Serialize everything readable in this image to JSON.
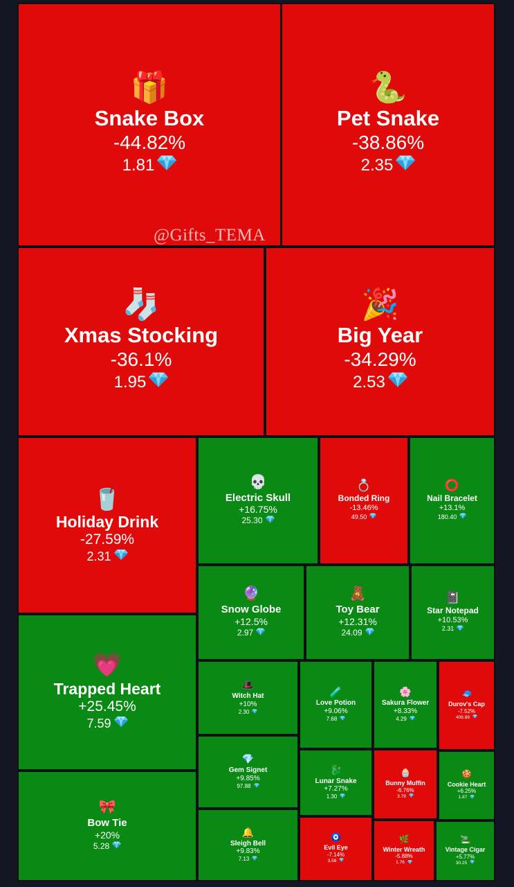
{
  "watermark": "@Gifts_TEMA",
  "colors": {
    "up": "#0a8a14",
    "down": "#e00a0a",
    "border": "#0c0f14",
    "background": "#141722",
    "text": "#ffffff",
    "gem": "#5ec8f5"
  },
  "chart_data": {
    "type": "treemap",
    "currency_icon": "diamond-icon",
    "items": [
      {
        "name": "Snake Box",
        "change": "-44.82%",
        "change_value": -44.82,
        "price": "1.81",
        "icon": "gift-box-icon"
      },
      {
        "name": "Pet Snake",
        "change": "-38.86%",
        "change_value": -38.86,
        "price": "2.35",
        "icon": "snake-icon"
      },
      {
        "name": "Xmas Stocking",
        "change": "-36.1%",
        "change_value": -36.1,
        "price": "1.95",
        "icon": "stocking-icon"
      },
      {
        "name": "Big Year",
        "change": "-34.29%",
        "change_value": -34.29,
        "price": "2.53",
        "icon": "year-2025-icon"
      },
      {
        "name": "Holiday Drink",
        "change": "-27.59%",
        "change_value": -27.59,
        "price": "2.31",
        "icon": "holiday-drink-icon"
      },
      {
        "name": "Electric Skull",
        "change": "+16.75%",
        "change_value": 16.75,
        "price": "25.30",
        "icon": "skull-icon"
      },
      {
        "name": "Bonded Ring",
        "change": "-13.46%",
        "change_value": -13.46,
        "price": "49.50",
        "icon": "ring-icon"
      },
      {
        "name": "Nail Bracelet",
        "change": "+13.1%",
        "change_value": 13.1,
        "price": "180.40",
        "icon": "bracelet-icon"
      },
      {
        "name": "Snow Globe",
        "change": "+12.5%",
        "change_value": 12.5,
        "price": "2.97",
        "icon": "snow-globe-icon"
      },
      {
        "name": "Toy Bear",
        "change": "+12.31%",
        "change_value": 12.31,
        "price": "24.09",
        "icon": "teddy-bear-icon"
      },
      {
        "name": "Star Notepad",
        "change": "+10.53%",
        "change_value": 10.53,
        "price": "2.31",
        "icon": "notepad-icon"
      },
      {
        "name": "Trapped Heart",
        "change": "+25.45%",
        "change_value": 25.45,
        "price": "7.59",
        "icon": "trapped-heart-icon"
      },
      {
        "name": "Witch Hat",
        "change": "+10%",
        "change_value": 10,
        "price": "2.30",
        "icon": "witch-hat-icon"
      },
      {
        "name": "Love Potion",
        "change": "+9.06%",
        "change_value": 9.06,
        "price": "7.68",
        "icon": "potion-icon"
      },
      {
        "name": "Sakura Flower",
        "change": "+8.33%",
        "change_value": 8.33,
        "price": "4.29",
        "icon": "sakura-icon"
      },
      {
        "name": "Durov's Cap",
        "change": "-7.52%",
        "change_value": -7.52,
        "price": "406.89",
        "icon": "cap-icon"
      },
      {
        "name": "Gem Signet",
        "change": "+9.85%",
        "change_value": 9.85,
        "price": "97.88",
        "icon": "signet-icon"
      },
      {
        "name": "Lunar Snake",
        "change": "+7.27%",
        "change_value": 7.27,
        "price": "1.30",
        "icon": "lunar-snake-icon"
      },
      {
        "name": "Bunny Muffin",
        "change": "-6.76%",
        "change_value": -6.76,
        "price": "3.79",
        "icon": "muffin-icon"
      },
      {
        "name": "Cookie Heart",
        "change": "+6.25%",
        "change_value": 6.25,
        "price": "1.87",
        "icon": "cookie-heart-icon"
      },
      {
        "name": "Bow Tie",
        "change": "+20%",
        "change_value": 20,
        "price": "5.28",
        "icon": "bow-tie-icon"
      },
      {
        "name": "Sleigh Bell",
        "change": "+9.83%",
        "change_value": 9.83,
        "price": "7.13",
        "icon": "bell-icon"
      },
      {
        "name": "Evil Eye",
        "change": "-7.14%",
        "change_value": -7.14,
        "price": "3.58",
        "icon": "evil-eye-icon"
      },
      {
        "name": "Winter Wreath",
        "change": "-5.88%",
        "change_value": -5.88,
        "price": "1.76",
        "icon": "wreath-icon"
      },
      {
        "name": "Vintage Cigar",
        "change": "+5.77%",
        "change_value": 5.77,
        "price": "30.25",
        "icon": "cigar-icon"
      }
    ]
  }
}
